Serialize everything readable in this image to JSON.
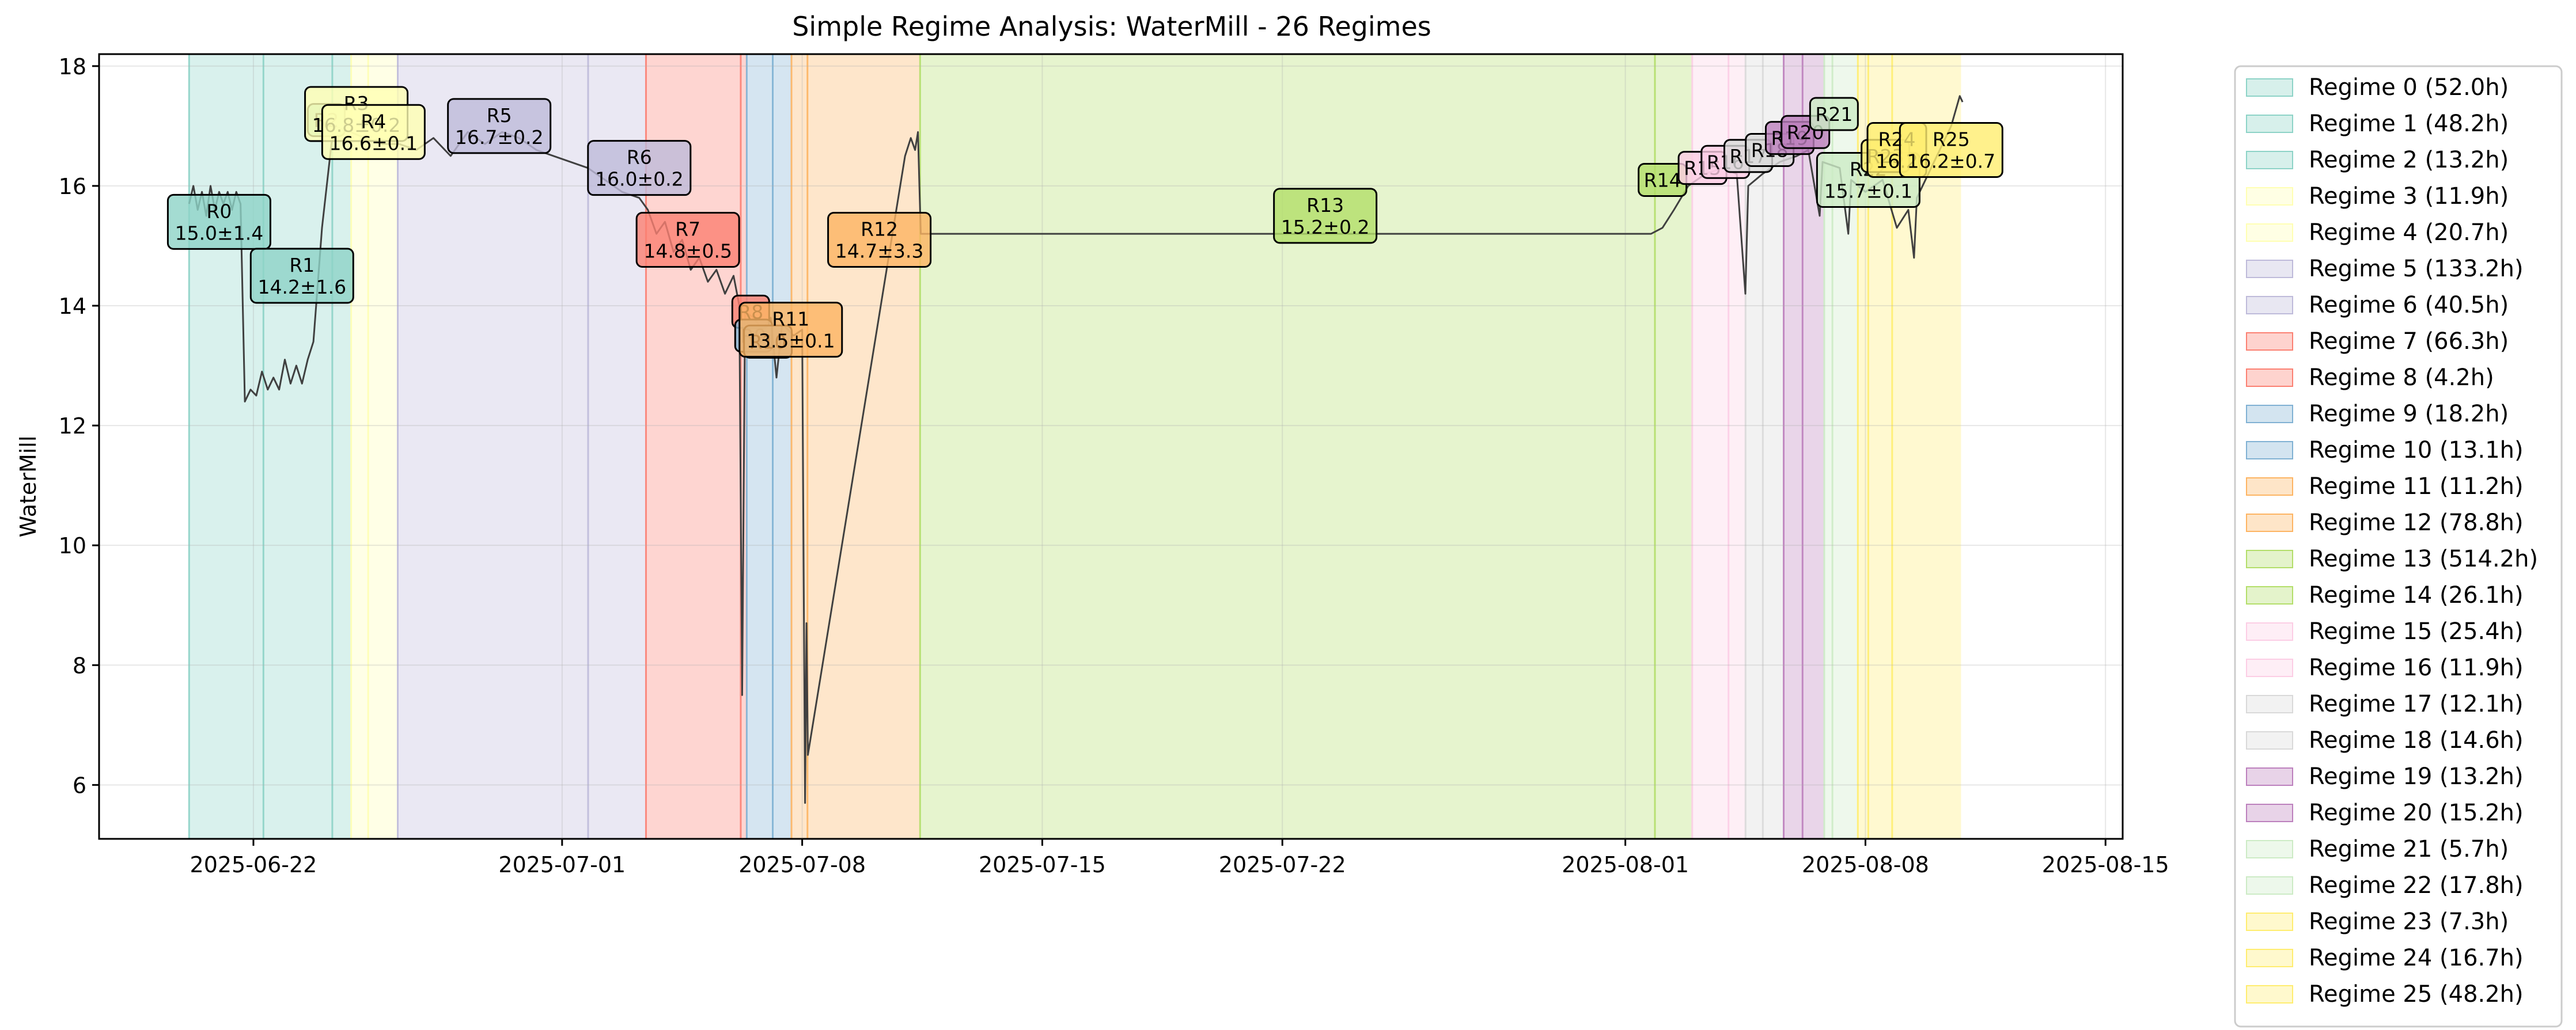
{
  "chart_data": {
    "type": "line",
    "title": "Simple Regime Analysis: WaterMill - 26 Regimes",
    "xlabel": "",
    "ylabel": "WaterMill",
    "xlim": [
      "2025-06-17T12:00",
      "2025-08-15T12:00"
    ],
    "ylim": [
      5.1,
      18.2
    ],
    "grid": true,
    "legend_position": "outside-right",
    "x_ticks": [
      {
        "value": "2025-06-22",
        "label": "2025-06-22"
      },
      {
        "value": "2025-07-01",
        "label": "2025-07-01"
      },
      {
        "value": "2025-07-08",
        "label": "2025-07-08"
      },
      {
        "value": "2025-07-15",
        "label": "2025-07-15"
      },
      {
        "value": "2025-07-22",
        "label": "2025-07-22"
      },
      {
        "value": "2025-08-01",
        "label": "2025-08-01"
      },
      {
        "value": "2025-08-08",
        "label": "2025-08-08"
      },
      {
        "value": "2025-08-15",
        "label": "2025-08-15"
      }
    ],
    "y_ticks": [
      6,
      8,
      10,
      12,
      14,
      16,
      18
    ],
    "regimes": [
      {
        "id": "R0",
        "legend": "Regime 0 (52.0h)",
        "start": "2025-06-20T03:00",
        "end": "2025-06-22T07:00",
        "color": "#8dd3c7",
        "mean_label": "15.0±1.4",
        "label_at": [
          "2025-06-21T00:00",
          15.4
        ]
      },
      {
        "id": "R1",
        "legend": "Regime 1 (48.2h)",
        "start": "2025-06-22T07:00",
        "end": "2025-06-24T07:12",
        "color": "#8dd3c7",
        "mean_label": "14.2±1.6",
        "label_at": [
          "2025-06-23T10:00",
          14.5
        ]
      },
      {
        "id": "R2",
        "legend": "Regime 2 (13.2h)",
        "start": "2025-06-24T07:12",
        "end": "2025-06-24T20:24",
        "color": "#8dd3c7",
        "mean_label": "",
        "label_at": [
          "2025-06-24T03:00",
          17.1
        ]
      },
      {
        "id": "R3",
        "legend": "Regime 3 (11.9h)",
        "start": "2025-06-24T20:24",
        "end": "2025-06-25T08:18",
        "color": "#ffffb3",
        "mean_label": "16.8±0.2",
        "label_at": [
          "2025-06-25T00:00",
          17.2
        ]
      },
      {
        "id": "R4",
        "legend": "Regime 4 (20.7h)",
        "start": "2025-06-25T08:18",
        "end": "2025-06-26T05:00",
        "color": "#ffffb3",
        "mean_label": "16.6±0.1",
        "label_at": [
          "2025-06-25T12:00",
          16.9
        ]
      },
      {
        "id": "R5",
        "legend": "Regime 5 (133.2h)",
        "start": "2025-06-26T05:00",
        "end": "2025-07-01T18:12",
        "color": "#bebada",
        "mean_label": "16.7±0.2",
        "label_at": [
          "2025-06-29T04:00",
          17.0
        ]
      },
      {
        "id": "R6",
        "legend": "Regime 6 (40.5h)",
        "start": "2025-07-01T18:12",
        "end": "2025-07-03T10:42",
        "color": "#bebada",
        "mean_label": "16.0±0.2",
        "label_at": [
          "2025-07-03T06:00",
          16.3
        ]
      },
      {
        "id": "R7",
        "legend": "Regime 7 (66.3h)",
        "start": "2025-07-03T10:42",
        "end": "2025-07-06T05:00",
        "color": "#fb8072",
        "mean_label": "14.8±0.5",
        "label_at": [
          "2025-07-04T16:00",
          15.1
        ]
      },
      {
        "id": "R8",
        "legend": "Regime 8 (4.2h)",
        "start": "2025-07-06T05:00",
        "end": "2025-07-06T09:12",
        "color": "#fb8072",
        "mean_label": "",
        "label_at": [
          "2025-07-06T12:00",
          13.9
        ]
      },
      {
        "id": "R9",
        "legend": "Regime 9 (18.2h)",
        "start": "2025-07-06T09:12",
        "end": "2025-07-07T03:24",
        "color": "#80b1d3",
        "mean_label": "",
        "label_at": [
          "2025-07-06T14:00",
          13.5
        ]
      },
      {
        "id": "R10",
        "legend": "Regime 10 (13.1h)",
        "start": "2025-07-07T03:24",
        "end": "2025-07-07T16:30",
        "color": "#80b1d3",
        "mean_label": "",
        "label_at": [
          "2025-07-07T00:00",
          13.4
        ]
      },
      {
        "id": "R11",
        "legend": "Regime 11 (11.2h)",
        "start": "2025-07-07T16:30",
        "end": "2025-07-08T03:42",
        "color": "#fdb462",
        "mean_label": "13.5±0.1",
        "label_at": [
          "2025-07-07T16:00",
          13.6
        ]
      },
      {
        "id": "R12",
        "legend": "Regime 12 (78.8h)",
        "start": "2025-07-08T03:42",
        "end": "2025-07-11T10:30",
        "color": "#fdb462",
        "mean_label": "14.7±3.3",
        "label_at": [
          "2025-07-10T06:00",
          15.1
        ]
      },
      {
        "id": "R13",
        "legend": "Regime 13 (514.2h)",
        "start": "2025-07-11T10:30",
        "end": "2025-08-01T20:42",
        "color": "#b3de69",
        "mean_label": "15.2±0.2",
        "label_at": [
          "2025-07-23T06:00",
          15.5
        ]
      },
      {
        "id": "R14",
        "legend": "Regime 14 (26.1h)",
        "start": "2025-08-01T20:42",
        "end": "2025-08-02T22:48",
        "color": "#b3de69",
        "mean_label": "",
        "label_at": [
          "2025-08-02T02:00",
          16.1
        ]
      },
      {
        "id": "R15",
        "legend": "Regime 15 (25.4h)",
        "start": "2025-08-02T22:48",
        "end": "2025-08-04T00:12",
        "color": "#fccde5",
        "mean_label": "",
        "label_at": [
          "2025-08-03T06:00",
          16.3
        ]
      },
      {
        "id": "R16",
        "legend": "Regime 16 (11.9h)",
        "start": "2025-08-04T00:12",
        "end": "2025-08-04T12:06",
        "color": "#fccde5",
        "mean_label": "",
        "label_at": [
          "2025-08-03T22:00",
          16.4
        ]
      },
      {
        "id": "R17",
        "legend": "Regime 17 (12.1h)",
        "start": "2025-08-04T12:06",
        "end": "2025-08-05T00:12",
        "color": "#d9d9d9",
        "mean_label": "",
        "label_at": [
          "2025-08-04T14:00",
          16.5
        ]
      },
      {
        "id": "R18",
        "legend": "Regime 18 (14.6h)",
        "start": "2025-08-05T00:12",
        "end": "2025-08-05T14:48",
        "color": "#d9d9d9",
        "mean_label": "",
        "label_at": [
          "2025-08-05T05:00",
          16.6
        ]
      },
      {
        "id": "R19",
        "legend": "Regime 19 (13.2h)",
        "start": "2025-08-05T14:48",
        "end": "2025-08-06T04:00",
        "color": "#bc80bd",
        "mean_label": "",
        "label_at": [
          "2025-08-05T19:00",
          16.8
        ]
      },
      {
        "id": "R20",
        "legend": "Regime 20 (15.2h)",
        "start": "2025-08-06T04:00",
        "end": "2025-08-06T19:12",
        "color": "#bc80bd",
        "mean_label": "",
        "label_at": [
          "2025-08-06T06:00",
          16.9
        ]
      },
      {
        "id": "R21",
        "legend": "Regime 21 (5.7h)",
        "start": "2025-08-06T19:12",
        "end": "2025-08-07T00:54",
        "color": "#ccebc5",
        "mean_label": "",
        "label_at": [
          "2025-08-07T02:00",
          17.2
        ]
      },
      {
        "id": "R22",
        "legend": "Regime 22 (17.8h)",
        "start": "2025-08-07T00:54",
        "end": "2025-08-07T18:42",
        "color": "#ccebc5",
        "mean_label": "15.7±0.1",
        "label_at": [
          "2025-08-08T02:00",
          16.1
        ]
      },
      {
        "id": "R23",
        "legend": "Regime 23 (7.3h)",
        "start": "2025-08-07T18:42",
        "end": "2025-08-08T02:00",
        "color": "#ffed6f",
        "mean_label": "",
        "label_at": [
          "2025-08-08T14:00",
          16.5
        ]
      },
      {
        "id": "R24",
        "legend": "Regime 24 (16.7h)",
        "start": "2025-08-08T02:00",
        "end": "2025-08-08T18:42",
        "color": "#ffed6f",
        "mean_label": "16.2",
        "label_at": [
          "2025-08-08T22:00",
          16.6
        ]
      },
      {
        "id": "R25",
        "legend": "Regime 25 (48.2h)",
        "start": "2025-08-08T18:42",
        "end": "2025-08-10T18:54",
        "color": "#ffed6f",
        "mean_label": "16.2±0.7",
        "label_at": [
          "2025-08-10T12:00",
          16.6
        ]
      }
    ],
    "series": [
      {
        "color": "#404040",
        "points": [
          [
            "2025-06-20T03:00",
            15.7
          ],
          [
            "2025-06-20T06:00",
            16.0
          ],
          [
            "2025-06-20T09:00",
            15.6
          ],
          [
            "2025-06-20T12:00",
            15.9
          ],
          [
            "2025-06-20T15:00",
            15.5
          ],
          [
            "2025-06-20T18:00",
            16.0
          ],
          [
            "2025-06-20T21:00",
            15.6
          ],
          [
            "2025-06-21T00:00",
            15.9
          ],
          [
            "2025-06-21T03:00",
            15.7
          ],
          [
            "2025-06-21T06:00",
            15.9
          ],
          [
            "2025-06-21T09:00",
            15.6
          ],
          [
            "2025-06-21T12:00",
            15.9
          ],
          [
            "2025-06-21T15:00",
            15.7
          ],
          [
            "2025-06-21T18:00",
            12.4
          ],
          [
            "2025-06-21T22:00",
            12.6
          ],
          [
            "2025-06-22T02:00",
            12.5
          ],
          [
            "2025-06-22T06:00",
            12.9
          ],
          [
            "2025-06-22T10:00",
            12.6
          ],
          [
            "2025-06-22T14:00",
            12.8
          ],
          [
            "2025-06-22T18:00",
            12.6
          ],
          [
            "2025-06-22T22:00",
            13.1
          ],
          [
            "2025-06-23T02:00",
            12.7
          ],
          [
            "2025-06-23T06:00",
            13.0
          ],
          [
            "2025-06-23T10:00",
            12.7
          ],
          [
            "2025-06-23T14:00",
            13.1
          ],
          [
            "2025-06-23T18:00",
            13.4
          ],
          [
            "2025-06-24T00:00",
            15.3
          ],
          [
            "2025-06-24T08:00",
            17.0
          ],
          [
            "2025-06-24T20:00",
            16.9
          ],
          [
            "2025-06-25T06:00",
            16.8
          ],
          [
            "2025-06-25T18:00",
            16.7
          ],
          [
            "2025-06-26T06:00",
            16.7
          ],
          [
            "2025-06-26T18:00",
            16.6
          ],
          [
            "2025-06-27T06:00",
            16.8
          ],
          [
            "2025-06-27T18:00",
            16.5
          ],
          [
            "2025-06-28T06:00",
            16.9
          ],
          [
            "2025-06-28T18:00",
            16.7
          ],
          [
            "2025-06-29T06:00",
            16.9
          ],
          [
            "2025-06-29T18:00",
            16.8
          ],
          [
            "2025-06-30T06:00",
            16.6
          ],
          [
            "2025-06-30T18:00",
            16.5
          ],
          [
            "2025-07-01T18:00",
            16.3
          ],
          [
            "2025-07-02T06:00",
            16.1
          ],
          [
            "2025-07-02T18:00",
            15.9
          ],
          [
            "2025-07-03T06:00",
            15.8
          ],
          [
            "2025-07-03T12:00",
            15.6
          ],
          [
            "2025-07-03T18:00",
            15.2
          ],
          [
            "2025-07-04T00:00",
            15.4
          ],
          [
            "2025-07-04T06:00",
            14.9
          ],
          [
            "2025-07-04T12:00",
            15.1
          ],
          [
            "2025-07-04T18:00",
            14.6
          ],
          [
            "2025-07-05T00:00",
            14.8
          ],
          [
            "2025-07-05T06:00",
            14.4
          ],
          [
            "2025-07-05T12:00",
            14.6
          ],
          [
            "2025-07-05T18:00",
            14.2
          ],
          [
            "2025-07-06T00:00",
            14.5
          ],
          [
            "2025-07-06T04:00",
            14.0
          ],
          [
            "2025-07-06T06:00",
            7.5
          ],
          [
            "2025-07-06T08:00",
            13.9
          ],
          [
            "2025-07-06T14:00",
            13.8
          ],
          [
            "2025-07-06T20:00",
            13.6
          ],
          [
            "2025-07-07T02:00",
            13.8
          ],
          [
            "2025-07-07T06:00",
            12.8
          ],
          [
            "2025-07-07T10:00",
            13.7
          ],
          [
            "2025-07-07T18:00",
            13.5
          ],
          [
            "2025-07-08T00:00",
            13.6
          ],
          [
            "2025-07-08T02:00",
            5.7
          ],
          [
            "2025-07-08T03:00",
            8.7
          ],
          [
            "2025-07-08T04:00",
            6.5
          ],
          [
            "2025-07-11T00:00",
            16.5
          ],
          [
            "2025-07-11T04:00",
            16.8
          ],
          [
            "2025-07-11T07:00",
            16.6
          ],
          [
            "2025-07-11T09:00",
            16.9
          ],
          [
            "2025-07-11T10:00",
            16.0
          ],
          [
            "2025-07-11T11:00",
            15.2
          ],
          [
            "2025-07-23T00:00",
            15.2
          ],
          [
            "2025-08-01T18:00",
            15.2
          ],
          [
            "2025-08-02T02:00",
            15.3
          ],
          [
            "2025-08-02T10:00",
            15.6
          ],
          [
            "2025-08-02T20:00",
            16.0
          ],
          [
            "2025-08-03T08:00",
            16.2
          ],
          [
            "2025-08-03T20:00",
            16.3
          ],
          [
            "2025-08-04T06:00",
            16.2
          ],
          [
            "2025-08-04T12:00",
            14.2
          ],
          [
            "2025-08-04T14:00",
            16.0
          ],
          [
            "2025-08-05T00:00",
            16.2
          ],
          [
            "2025-08-05T12:00",
            16.4
          ],
          [
            "2025-08-06T00:00",
            16.5
          ],
          [
            "2025-08-06T08:00",
            16.6
          ],
          [
            "2025-08-06T16:00",
            15.5
          ],
          [
            "2025-08-06T18:00",
            16.4
          ],
          [
            "2025-08-07T06:00",
            16.3
          ],
          [
            "2025-08-07T12:00",
            15.2
          ],
          [
            "2025-08-07T14:00",
            16.1
          ],
          [
            "2025-08-08T00:00",
            15.9
          ],
          [
            "2025-08-08T12:00",
            16.1
          ],
          [
            "2025-08-08T22:00",
            15.3
          ],
          [
            "2025-08-09T06:00",
            15.6
          ],
          [
            "2025-08-09T10:00",
            14.8
          ],
          [
            "2025-08-09T12:00",
            15.8
          ],
          [
            "2025-08-10T00:00",
            16.4
          ],
          [
            "2025-08-10T12:00",
            17.0
          ],
          [
            "2025-08-10T18:00",
            17.5
          ],
          [
            "2025-08-10T20:00",
            17.4
          ]
        ]
      }
    ]
  }
}
